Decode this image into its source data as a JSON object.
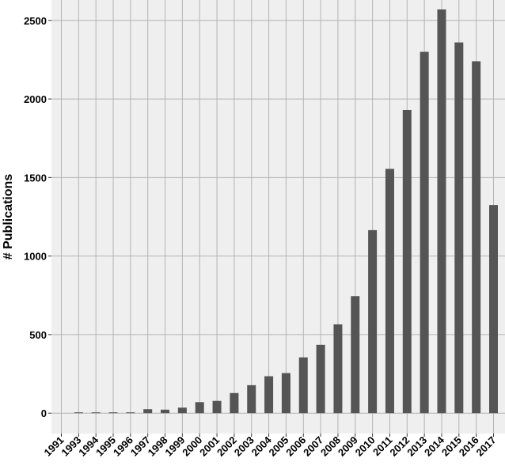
{
  "chart_data": {
    "type": "bar",
    "title": "",
    "xlabel": "",
    "ylabel": "# Publications",
    "categories": [
      "1991",
      "1993",
      "1994",
      "1995",
      "1996",
      "1997",
      "1998",
      "1999",
      "2000",
      "2001",
      "2002",
      "2003",
      "2004",
      "2005",
      "2006",
      "2007",
      "2008",
      "2009",
      "2010",
      "2011",
      "2012",
      "2013",
      "2014",
      "2015",
      "2016",
      "2017"
    ],
    "values": [
      0,
      2,
      3,
      2,
      5,
      25,
      22,
      35,
      70,
      78,
      128,
      178,
      235,
      255,
      355,
      435,
      565,
      745,
      1165,
      1555,
      1930,
      2300,
      2570,
      2360,
      2240,
      1325
    ],
    "ylim": [
      -130,
      2630
    ],
    "yticks": [
      0,
      500,
      1000,
      1500,
      2000,
      2500
    ],
    "grid": true,
    "legend": "none",
    "colors": {
      "bar": "#555555",
      "panel": "#efefef",
      "grid": "#b4b4b4"
    }
  }
}
